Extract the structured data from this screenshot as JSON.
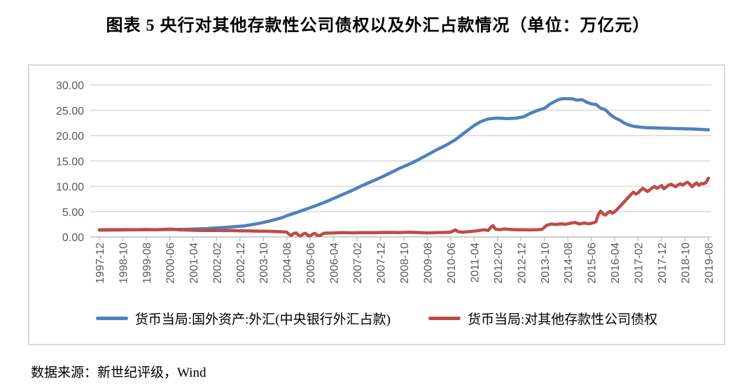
{
  "title": "图表 5  央行对其他存款性公司债权以及外汇占款情况（单位：万亿元）",
  "source_note": "数据来源：新世纪评级，Wind",
  "colors": {
    "series_fx": "#4E81BD",
    "series_claims": "#BE4B48",
    "gridline": "#d9d9d9",
    "axis": "#bfbfbf",
    "axis_label": "#595959"
  },
  "chart_data": {
    "type": "line",
    "title": "央行对其他存款性公司债权以及外汇占款情况",
    "unit": "万亿元",
    "grid": "horizontal",
    "legend_position": "bottom",
    "y_axis": {
      "min": 0,
      "max": 30,
      "step": 5,
      "tick_labels": [
        "0.00",
        "5.00",
        "10.00",
        "15.00",
        "20.00",
        "25.00",
        "30.00"
      ]
    },
    "x_ticks": [
      "1997-12",
      "1998-10",
      "1999-08",
      "2000-06",
      "2001-04",
      "2002-02",
      "2002-12",
      "2003-10",
      "2004-08",
      "2005-06",
      "2006-04",
      "2007-02",
      "2007-12",
      "2008-10",
      "2009-08",
      "2010-06",
      "2011-04",
      "2012-02",
      "2012-12",
      "2013-10",
      "2014-08",
      "2015-06",
      "2016-04",
      "2017-02",
      "2017-12",
      "2018-10",
      "2019-08"
    ],
    "months_per_tick": 10,
    "x_range_months": [
      0,
      260
    ],
    "series": [
      {
        "name": "货币当局:国外资产:外汇(中央银行外汇占款)",
        "color": "#4E81BD",
        "points": [
          [
            0,
            1.35
          ],
          [
            6,
            1.37
          ],
          [
            12,
            1.39
          ],
          [
            18,
            1.41
          ],
          [
            24,
            1.43
          ],
          [
            30,
            1.46
          ],
          [
            36,
            1.5
          ],
          [
            42,
            1.58
          ],
          [
            46,
            1.65
          ],
          [
            50,
            1.78
          ],
          [
            54,
            1.9
          ],
          [
            58,
            2.03
          ],
          [
            62,
            2.2
          ],
          [
            66,
            2.5
          ],
          [
            70,
            2.85
          ],
          [
            74,
            3.3
          ],
          [
            78,
            3.8
          ],
          [
            80,
            4.2
          ],
          [
            84,
            4.8
          ],
          [
            88,
            5.45
          ],
          [
            92,
            6.1
          ],
          [
            96,
            6.8
          ],
          [
            100,
            7.6
          ],
          [
            104,
            8.4
          ],
          [
            108,
            9.2
          ],
          [
            112,
            10.1
          ],
          [
            116,
            10.9
          ],
          [
            120,
            11.7
          ],
          [
            124,
            12.6
          ],
          [
            128,
            13.5
          ],
          [
            132,
            14.3
          ],
          [
            136,
            15.2
          ],
          [
            140,
            16.2
          ],
          [
            144,
            17.2
          ],
          [
            148,
            18.1
          ],
          [
            152,
            19.2
          ],
          [
            156,
            20.6
          ],
          [
            160,
            22.0
          ],
          [
            163,
            22.8
          ],
          [
            166,
            23.3
          ],
          [
            170,
            23.45
          ],
          [
            174,
            23.35
          ],
          [
            178,
            23.45
          ],
          [
            181,
            23.7
          ],
          [
            184,
            24.4
          ],
          [
            187,
            24.95
          ],
          [
            190,
            25.4
          ],
          [
            193,
            26.4
          ],
          [
            196,
            27.1
          ],
          [
            198,
            27.3
          ],
          [
            202,
            27.25
          ],
          [
            204,
            27.0
          ],
          [
            206,
            27.1
          ],
          [
            208,
            26.6
          ],
          [
            210,
            26.25
          ],
          [
            212,
            26.15
          ],
          [
            214,
            25.4
          ],
          [
            216,
            25.1
          ],
          [
            218,
            24.2
          ],
          [
            220,
            23.5
          ],
          [
            222,
            23.1
          ],
          [
            224,
            22.5
          ],
          [
            226,
            22.1
          ],
          [
            228,
            21.85
          ],
          [
            231,
            21.65
          ],
          [
            234,
            21.55
          ],
          [
            238,
            21.5
          ],
          [
            242,
            21.45
          ],
          [
            246,
            21.4
          ],
          [
            250,
            21.35
          ],
          [
            254,
            21.3
          ],
          [
            257,
            21.2
          ],
          [
            260,
            21.15
          ]
        ]
      },
      {
        "name": "货币当局:对其他存款性公司债权",
        "color": "#BE4B48",
        "points": [
          [
            0,
            1.42
          ],
          [
            4,
            1.44
          ],
          [
            8,
            1.43
          ],
          [
            12,
            1.45
          ],
          [
            16,
            1.43
          ],
          [
            20,
            1.46
          ],
          [
            24,
            1.42
          ],
          [
            28,
            1.5
          ],
          [
            30,
            1.55
          ],
          [
            32,
            1.48
          ],
          [
            34,
            1.42
          ],
          [
            36,
            1.38
          ],
          [
            40,
            1.32
          ],
          [
            44,
            1.28
          ],
          [
            48,
            1.3
          ],
          [
            52,
            1.25
          ],
          [
            56,
            1.28
          ],
          [
            60,
            1.22
          ],
          [
            64,
            1.18
          ],
          [
            68,
            1.15
          ],
          [
            72,
            1.12
          ],
          [
            75,
            1.08
          ],
          [
            78,
            1.02
          ],
          [
            80,
            0.95
          ],
          [
            81,
            0.5
          ],
          [
            82,
            0.3
          ],
          [
            83,
            0.7
          ],
          [
            84,
            0.8
          ],
          [
            85,
            0.35
          ],
          [
            86,
            0.22
          ],
          [
            87,
            0.6
          ],
          [
            88,
            0.75
          ],
          [
            89,
            0.3
          ],
          [
            90,
            0.22
          ],
          [
            91,
            0.55
          ],
          [
            92,
            0.7
          ],
          [
            93,
            0.32
          ],
          [
            94,
            0.28
          ],
          [
            95,
            0.5
          ],
          [
            96,
            0.75
          ],
          [
            100,
            0.8
          ],
          [
            104,
            0.85
          ],
          [
            108,
            0.82
          ],
          [
            112,
            0.86
          ],
          [
            116,
            0.84
          ],
          [
            120,
            0.88
          ],
          [
            124,
            0.9
          ],
          [
            128,
            0.86
          ],
          [
            132,
            0.92
          ],
          [
            136,
            0.88
          ],
          [
            140,
            0.8
          ],
          [
            144,
            0.85
          ],
          [
            148,
            0.9
          ],
          [
            150,
            0.95
          ],
          [
            152,
            1.4
          ],
          [
            153,
            1.05
          ],
          [
            155,
            0.92
          ],
          [
            158,
            1.05
          ],
          [
            161,
            1.2
          ],
          [
            164,
            1.4
          ],
          [
            166,
            1.28
          ],
          [
            167,
            1.85
          ],
          [
            168,
            2.25
          ],
          [
            169,
            1.55
          ],
          [
            171,
            1.42
          ],
          [
            173,
            1.58
          ],
          [
            175,
            1.48
          ],
          [
            178,
            1.4
          ],
          [
            181,
            1.44
          ],
          [
            184,
            1.38
          ],
          [
            187,
            1.44
          ],
          [
            189,
            1.5
          ],
          [
            191,
            2.3
          ],
          [
            193,
            2.55
          ],
          [
            195,
            2.45
          ],
          [
            197,
            2.6
          ],
          [
            199,
            2.5
          ],
          [
            201,
            2.7
          ],
          [
            203,
            2.85
          ],
          [
            205,
            2.55
          ],
          [
            207,
            2.75
          ],
          [
            209,
            2.6
          ],
          [
            211,
            2.8
          ],
          [
            212,
            3.0
          ],
          [
            213,
            4.4
          ],
          [
            214,
            5.1
          ],
          [
            215,
            4.55
          ],
          [
            216,
            4.3
          ],
          [
            217,
            4.75
          ],
          [
            218,
            5.05
          ],
          [
            219,
            4.7
          ],
          [
            220,
            5.0
          ],
          [
            221,
            5.4
          ],
          [
            222,
            5.9
          ],
          [
            223,
            6.4
          ],
          [
            224,
            6.9
          ],
          [
            225,
            7.4
          ],
          [
            226,
            7.9
          ],
          [
            227,
            8.4
          ],
          [
            228,
            8.85
          ],
          [
            229,
            8.45
          ],
          [
            230,
            8.7
          ],
          [
            231,
            9.2
          ],
          [
            232,
            9.6
          ],
          [
            233,
            9.3
          ],
          [
            234,
            8.95
          ],
          [
            235,
            9.3
          ],
          [
            236,
            9.65
          ],
          [
            237,
            9.95
          ],
          [
            238,
            9.6
          ],
          [
            239,
            9.85
          ],
          [
            240,
            10.15
          ],
          [
            241,
            9.5
          ],
          [
            242,
            9.85
          ],
          [
            243,
            10.2
          ],
          [
            244,
            10.4
          ],
          [
            245,
            10.15
          ],
          [
            246,
            9.9
          ],
          [
            247,
            10.25
          ],
          [
            248,
            10.5
          ],
          [
            249,
            10.25
          ],
          [
            250,
            10.55
          ],
          [
            251,
            10.8
          ],
          [
            252,
            10.45
          ],
          [
            253,
            9.9
          ],
          [
            254,
            10.35
          ],
          [
            255,
            10.65
          ],
          [
            256,
            10.2
          ],
          [
            257,
            10.55
          ],
          [
            258,
            10.5
          ],
          [
            259,
            10.75
          ],
          [
            260,
            11.6
          ]
        ]
      }
    ]
  }
}
